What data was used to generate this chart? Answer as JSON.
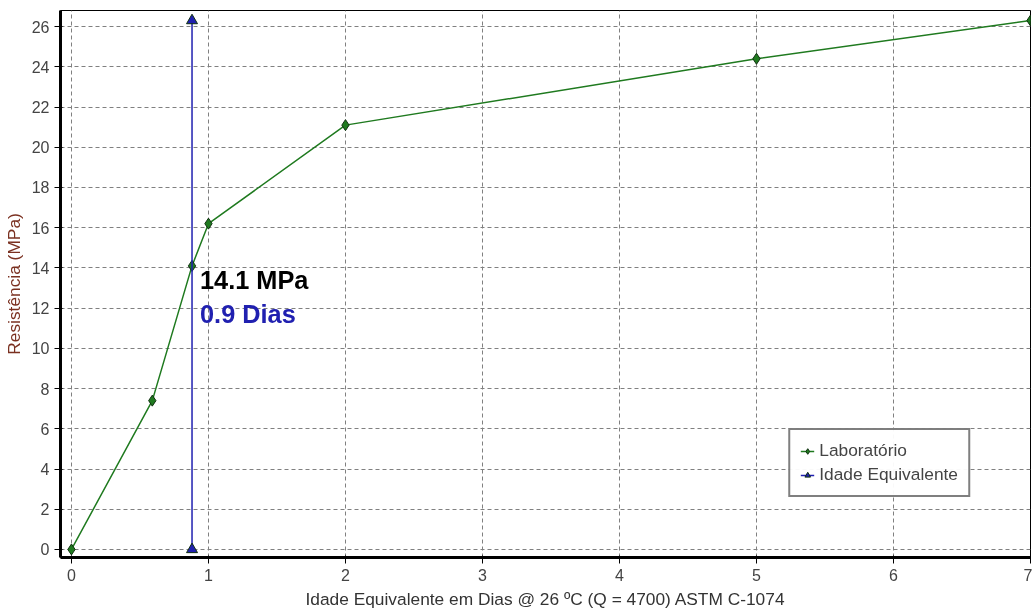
{
  "chart_data": {
    "type": "line",
    "xlabel": "Idade Equivalente em Dias @ 26 ºC (Q = 4700) ASTM C-1074",
    "ylabel": "Resistência (MPa)",
    "xlim": [
      -0.08,
      7
    ],
    "ylim": [
      -0.4,
      26.8
    ],
    "xticks": [
      0,
      1,
      2,
      3,
      4,
      5,
      6,
      7
    ],
    "yticks": [
      0,
      2,
      4,
      6,
      8,
      10,
      12,
      14,
      16,
      18,
      20,
      22,
      24,
      26
    ],
    "grid": true,
    "legend": "bottom right",
    "series": [
      {
        "name": "Laboratório",
        "color": "#1f7a1f",
        "marker": "diamond",
        "x": [
          0,
          0.59,
          0.88,
          1,
          2,
          5,
          7
        ],
        "values": [
          0,
          7.4,
          14.1,
          16.2,
          21.1,
          24.4,
          26.3
        ]
      },
      {
        "name": "Idade Equivalente",
        "color": "#2020b0",
        "marker": "triangle",
        "x": [
          0.88,
          0.88
        ],
        "values": [
          0,
          26.3
        ]
      }
    ],
    "annotations": [
      {
        "text": "14.1 MPa",
        "x": 0.88,
        "y": 14.1
      },
      {
        "text": "0.9 Dias",
        "x": 0.88,
        "y": 14.1
      }
    ]
  }
}
